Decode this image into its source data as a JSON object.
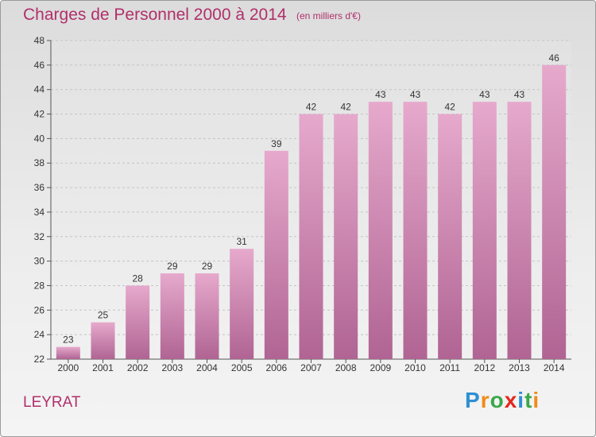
{
  "title": "Charges de Personnel 2000 à 2014",
  "subtitle": "(en milliers d'€)",
  "city": "LEYRAT",
  "logo": {
    "letters": [
      "P",
      "r",
      "o",
      "x",
      "i",
      "t",
      "i"
    ],
    "colors": [
      "#2e8fd3",
      "#f08a18",
      "#3aa84a",
      "#e2281e",
      "#2e8fd3",
      "#3aa84a",
      "#f08a18"
    ]
  },
  "colors": {
    "accent": "#b0306a",
    "bar_top": "#e6a9cc",
    "bar_bottom": "#b06493"
  },
  "chart_data": {
    "type": "bar",
    "title": "Charges de Personnel 2000 à 2014",
    "subtitle": "(en milliers d'€)",
    "categories": [
      "2000",
      "2001",
      "2002",
      "2003",
      "2004",
      "2005",
      "2006",
      "2007",
      "2008",
      "2009",
      "2010",
      "2011",
      "2012",
      "2013",
      "2014"
    ],
    "values": [
      23,
      25,
      28,
      29,
      29,
      31,
      39,
      42,
      42,
      43,
      43,
      42,
      43,
      43,
      46
    ],
    "ylim": [
      22,
      48
    ],
    "yticks": [
      22,
      24,
      26,
      28,
      30,
      32,
      34,
      36,
      38,
      40,
      42,
      44,
      46,
      48
    ],
    "xlabel": "",
    "ylabel": "",
    "grid": true,
    "data_labels": true
  }
}
